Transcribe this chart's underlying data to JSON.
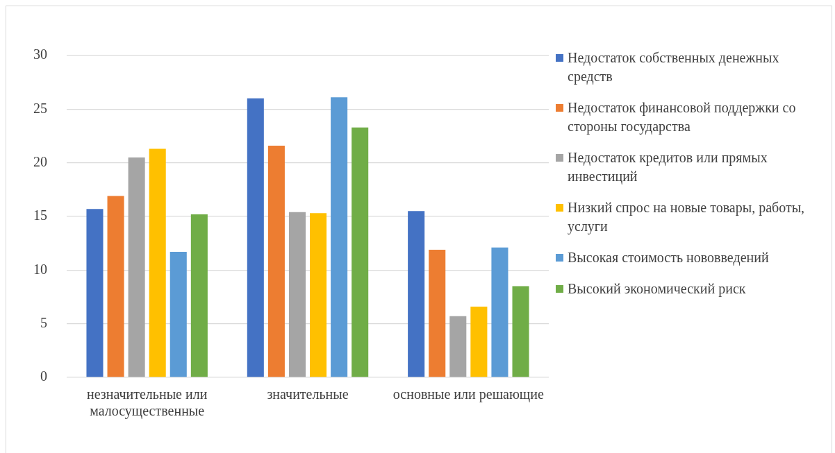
{
  "chart_data": {
    "type": "bar",
    "categories": [
      "незначительные или малосущественные",
      "значительные",
      "основные или решающие"
    ],
    "series": [
      {
        "name": "Недостаток собственных денежных средств",
        "color": "#4472c4",
        "values": [
          15.7,
          26.0,
          15.5
        ]
      },
      {
        "name": "Недостаток финансовой поддержки со стороны государства",
        "color": "#ed7d31",
        "values": [
          16.9,
          21.6,
          11.9
        ]
      },
      {
        "name": "Недостаток кредитов или прямых инвестиций",
        "color": "#a5a5a5",
        "values": [
          20.5,
          15.4,
          5.7
        ]
      },
      {
        "name": "Низкий спрос на новые товары, работы, услуги",
        "color": "#ffc000",
        "values": [
          21.3,
          15.3,
          6.6
        ]
      },
      {
        "name": "Высокая стоимость нововведений",
        "color": "#5b9bd5",
        "values": [
          11.7,
          26.1,
          12.1
        ]
      },
      {
        "name": "Высокий экономический риск",
        "color": "#70ad47",
        "values": [
          15.2,
          23.3,
          8.5
        ]
      }
    ],
    "ylim": [
      0,
      30
    ],
    "yticks": [
      0,
      5,
      10,
      15,
      20,
      25,
      30
    ],
    "grid": "y",
    "legend": "right"
  }
}
